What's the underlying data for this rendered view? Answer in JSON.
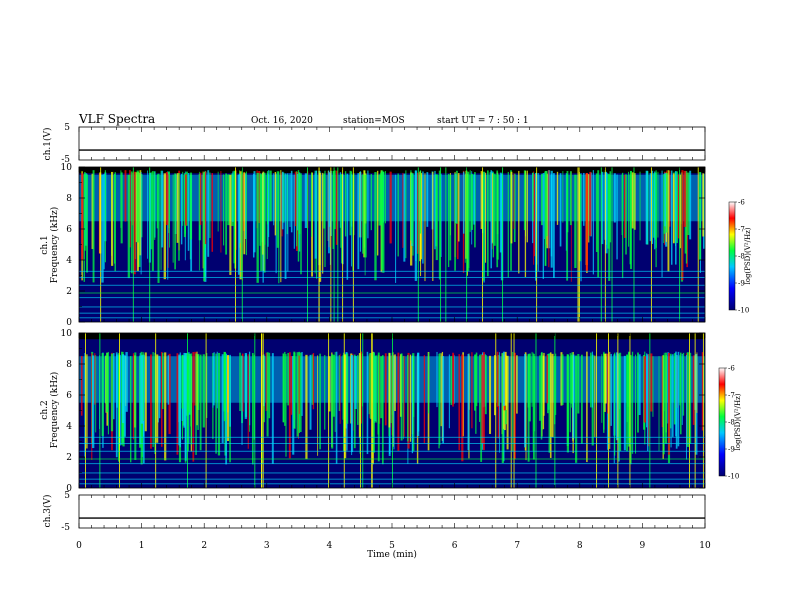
{
  "header": {
    "title": "VLF Spectra",
    "date": "Oct. 16, 2020",
    "station": "station=MOS",
    "start_ut": "start  UT =   7 : 50 : 1"
  },
  "colors": {
    "spectrogram_bg": "#000000",
    "noise_blue": "#0000cc",
    "cyan": "#00d8ff",
    "green": "#00ff40",
    "yellow": "#ffff00",
    "red": "#ff0000",
    "line": "#000000"
  },
  "chart_data": [
    {
      "type": "line",
      "name": "ch1-waveform",
      "ylabel": "ch.1(V)",
      "ylim": [
        -5,
        5
      ],
      "yticks": [
        "5",
        "-5"
      ],
      "xlim": [
        0,
        10
      ],
      "baseline_value": -2
    },
    {
      "type": "heatmap",
      "name": "ch1-spectrogram",
      "ylabel_top": "ch.1",
      "ylabel": "Frequency  (kHz)",
      "ylim": [
        0,
        10
      ],
      "yticks": [
        "0",
        "2",
        "4",
        "6",
        "8",
        "10"
      ],
      "xlim": [
        0,
        10
      ],
      "emission_band_khz": [
        6.5,
        9.5
      ],
      "colorbar": {
        "label": "log(PSD)(V²/Hz)",
        "range": [
          -10,
          -6
        ],
        "ticks": [
          "-6",
          "-7",
          "-8",
          "-9",
          "-10"
        ]
      }
    },
    {
      "type": "heatmap",
      "name": "ch2-spectrogram",
      "ylabel_top": "ch.2",
      "ylabel": "Frequency  (kHz)",
      "ylim": [
        0,
        10
      ],
      "yticks": [
        "0",
        "2",
        "4",
        "6",
        "8",
        "10"
      ],
      "xlim": [
        0,
        10
      ],
      "emission_band_khz": [
        5.5,
        8.5
      ],
      "colorbar": {
        "label": "log(PSD)(V²/Hz)",
        "range": [
          -10,
          -6
        ],
        "ticks": [
          "-6",
          "-7",
          "-8",
          "-9",
          "-10"
        ]
      }
    },
    {
      "type": "line",
      "name": "ch3-waveform",
      "ylabel": "ch.3(V)",
      "ylim": [
        -5,
        5
      ],
      "yticks": [
        "5",
        "-5"
      ],
      "xlim": [
        0,
        10
      ],
      "baseline_value": -2
    }
  ],
  "xaxis": {
    "label": "Time  (min)",
    "ticks": [
      "0",
      "1",
      "2",
      "3",
      "4",
      "5",
      "6",
      "7",
      "8",
      "9",
      "10"
    ]
  }
}
